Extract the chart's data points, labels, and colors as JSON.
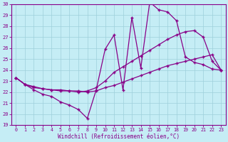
{
  "xlabel": "Windchill (Refroidissement éolien,°C)",
  "bg_color": "#c5edf5",
  "line_color": "#880088",
  "grid_color": "#9ecfdb",
  "xlim_min": -0.5,
  "xlim_max": 23.5,
  "ylim_min": 19,
  "ylim_max": 30,
  "xticks": [
    0,
    1,
    2,
    3,
    4,
    5,
    6,
    7,
    8,
    9,
    10,
    11,
    12,
    13,
    14,
    15,
    16,
    17,
    18,
    19,
    20,
    21,
    22,
    23
  ],
  "yticks": [
    19,
    20,
    21,
    22,
    23,
    24,
    25,
    26,
    27,
    28,
    29,
    30
  ],
  "s1_x": [
    0,
    1,
    2,
    3,
    4,
    5,
    6,
    7,
    8,
    9,
    10,
    11,
    12,
    13,
    14,
    15,
    16,
    17,
    18,
    19,
    20,
    21,
    22,
    23
  ],
  "s1_y": [
    23.3,
    22.7,
    22.2,
    21.8,
    21.6,
    21.1,
    20.8,
    20.4,
    19.6,
    22.2,
    25.9,
    27.2,
    22.2,
    28.8,
    24.2,
    30.2,
    29.5,
    29.3,
    28.5,
    25.2,
    24.7,
    24.5,
    24.1,
    24.0
  ],
  "s2_x": [
    0,
    1,
    2,
    3,
    4,
    5,
    6,
    7,
    8,
    9,
    10,
    11,
    12,
    13,
    14,
    15,
    16,
    17,
    18,
    19,
    20,
    21,
    22,
    23
  ],
  "s2_y": [
    23.3,
    22.7,
    22.5,
    22.3,
    22.2,
    22.2,
    22.1,
    22.0,
    22.1,
    22.4,
    23.0,
    23.8,
    24.3,
    24.8,
    25.3,
    25.8,
    26.3,
    26.8,
    27.2,
    27.5,
    27.6,
    27.0,
    24.8,
    24.0
  ],
  "s3_x": [
    0,
    1,
    2,
    3,
    4,
    5,
    6,
    7,
    8,
    9,
    10,
    11,
    12,
    13,
    14,
    15,
    16,
    17,
    18,
    19,
    20,
    21,
    22,
    23
  ],
  "s3_y": [
    23.3,
    22.7,
    22.4,
    22.3,
    22.2,
    22.1,
    22.1,
    22.1,
    22.0,
    22.1,
    22.4,
    22.6,
    22.9,
    23.2,
    23.5,
    23.8,
    24.1,
    24.4,
    24.6,
    24.8,
    25.0,
    25.2,
    25.4,
    24.0
  ]
}
